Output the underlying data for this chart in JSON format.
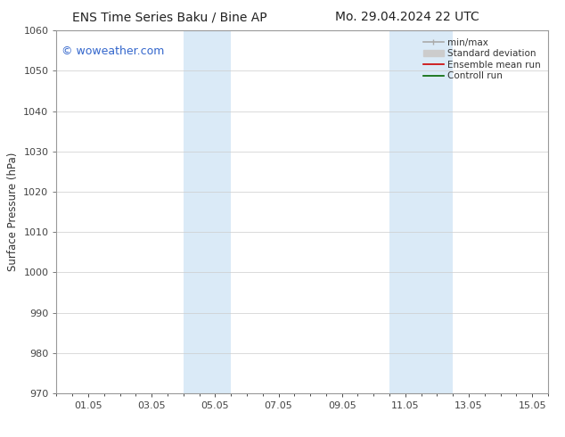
{
  "title_left": "ENS Time Series Baku / Bine AP",
  "title_right": "Mo. 29.04.2024 22 UTC",
  "ylabel": "Surface Pressure (hPa)",
  "ylim": [
    970,
    1060
  ],
  "yticks": [
    970,
    980,
    990,
    1000,
    1010,
    1020,
    1030,
    1040,
    1050,
    1060
  ],
  "xlim_days": [
    0.0,
    15.5
  ],
  "xtick_labels": [
    "01.05",
    "03.05",
    "05.05",
    "07.05",
    "09.05",
    "11.05",
    "13.05",
    "15.05"
  ],
  "xtick_positions": [
    1,
    3,
    5,
    7,
    9,
    11,
    13,
    15
  ],
  "shade_bands": [
    {
      "x_start": 4.0,
      "x_end": 5.5
    },
    {
      "x_start": 10.5,
      "x_end": 12.5
    }
  ],
  "shade_color": "#daeaf7",
  "watermark": "© woweather.com",
  "watermark_color": "#3366cc",
  "legend_items": [
    {
      "label": "min/max",
      "color": "#aaaaaa",
      "lw": 1.2
    },
    {
      "label": "Standard deviation",
      "color": "#cccccc",
      "lw": 5
    },
    {
      "label": "Ensemble mean run",
      "color": "#cc0000",
      "lw": 1.2
    },
    {
      "label": "Controll run",
      "color": "#006600",
      "lw": 1.2
    }
  ],
  "bg_color": "#ffffff",
  "spine_color": "#999999",
  "tick_color": "#444444",
  "title_fontsize": 10,
  "label_fontsize": 8.5,
  "tick_fontsize": 8,
  "legend_fontsize": 7.5,
  "watermark_fontsize": 9
}
